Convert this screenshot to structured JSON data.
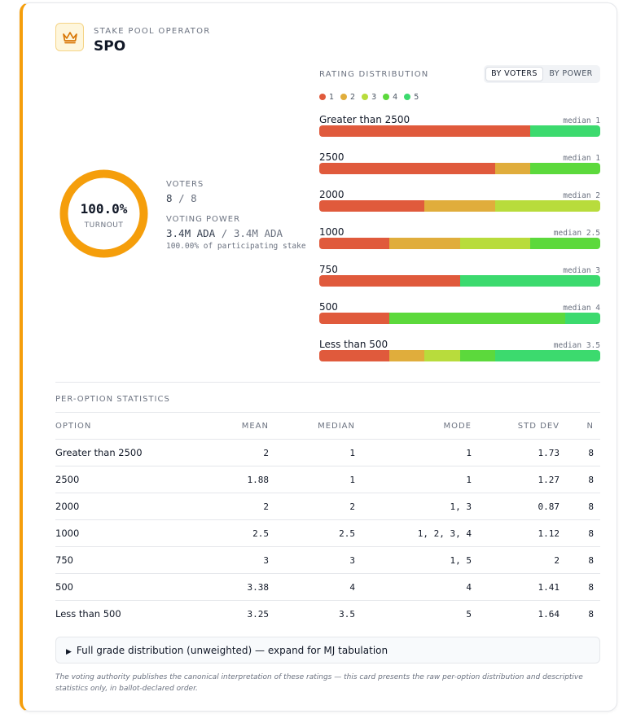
{
  "header": {
    "eyebrow": "STAKE POOL OPERATOR",
    "title": "SPO",
    "icon": "crown-icon"
  },
  "turnout": {
    "percent_text": "100.0%",
    "label": "TURNOUT",
    "fraction": 1.0,
    "ring_color": "#f59e0b"
  },
  "voters": {
    "label": "VOTERS",
    "count": "8",
    "separator": "/",
    "total": "8"
  },
  "voting_power": {
    "label": "VOTING POWER",
    "amount": "3.4M ADA",
    "separator": "/",
    "total": "3.4M ADA",
    "note": "100.00% of participating stake"
  },
  "rating_distribution": {
    "title": "RATING DISTRIBUTION",
    "toggle": [
      {
        "label": "BY VOTERS",
        "active": true
      },
      {
        "label": "BY POWER",
        "active": false
      }
    ],
    "legend": [
      {
        "label": "1",
        "color": "#e05a3c"
      },
      {
        "label": "2",
        "color": "#e0ad3c"
      },
      {
        "label": "3",
        "color": "#b8dc3c"
      },
      {
        "label": "4",
        "color": "#5cd93c"
      },
      {
        "label": "5",
        "color": "#3cda6e"
      }
    ],
    "rows": [
      {
        "label": "Greater than 2500",
        "median": "median 1",
        "counts": [
          6,
          0,
          0,
          0,
          2
        ]
      },
      {
        "label": "2500",
        "median": "median 1",
        "counts": [
          5,
          1,
          0,
          2,
          0
        ]
      },
      {
        "label": "2000",
        "median": "median 2",
        "counts": [
          3,
          2,
          3,
          0,
          0
        ]
      },
      {
        "label": "1000",
        "median": "median 2.5",
        "counts": [
          2,
          2,
          2,
          2,
          0
        ]
      },
      {
        "label": "750",
        "median": "median 3",
        "counts": [
          4,
          0,
          0,
          0,
          4
        ]
      },
      {
        "label": "500",
        "median": "median 4",
        "counts": [
          2,
          0,
          0,
          5,
          1
        ]
      },
      {
        "label": "Less than 500",
        "median": "median 3.5",
        "counts": [
          2,
          1,
          1,
          1,
          3
        ]
      }
    ]
  },
  "per_option": {
    "title": "PER-OPTION STATISTICS",
    "columns": {
      "option": "OPTION",
      "mean": "MEAN",
      "median": "MEDIAN",
      "mode": "MODE",
      "std": "STD DEV",
      "n": "N"
    },
    "rows": [
      {
        "option": "Greater than 2500",
        "mean": "2",
        "median": "1",
        "mode": "1",
        "std": "1.73",
        "n": "8"
      },
      {
        "option": "2500",
        "mean": "1.88",
        "median": "1",
        "mode": "1",
        "std": "1.27",
        "n": "8"
      },
      {
        "option": "2000",
        "mean": "2",
        "median": "2",
        "mode": "1, 3",
        "std": "0.87",
        "n": "8"
      },
      {
        "option": "1000",
        "mean": "2.5",
        "median": "2.5",
        "mode": "1, 2, 3, 4",
        "std": "1.12",
        "n": "8"
      },
      {
        "option": "750",
        "mean": "3",
        "median": "3",
        "mode": "1, 5",
        "std": "2",
        "n": "8"
      },
      {
        "option": "500",
        "mean": "3.38",
        "median": "4",
        "mode": "4",
        "std": "1.41",
        "n": "8"
      },
      {
        "option": "Less than 500",
        "mean": "3.25",
        "median": "3.5",
        "mode": "5",
        "std": "1.64",
        "n": "8"
      }
    ]
  },
  "details": {
    "marker": "▶",
    "label": "Full grade distribution (unweighted) — expand for MJ tabulation"
  },
  "footnote": "The voting authority publishes the canonical interpretation of these ratings — this card presents the raw per-option distribution and descriptive statistics only, in ballot-declared order."
}
